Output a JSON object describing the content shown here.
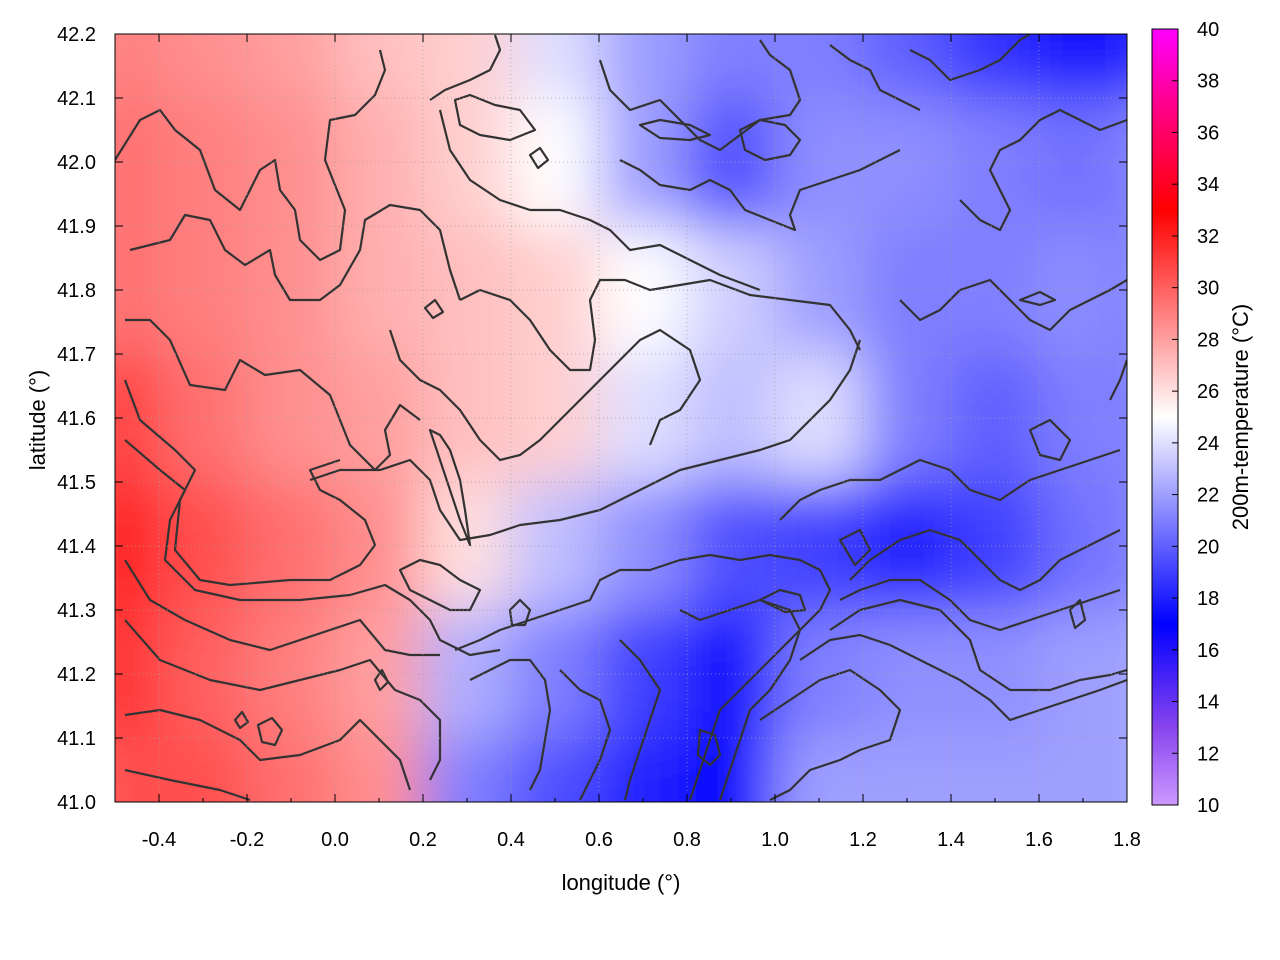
{
  "chart_data": {
    "type": "heatmap",
    "title": "",
    "xlabel": "longitude (°)",
    "ylabel": "latitude (°)",
    "colorbar_label": "200m-temperature (°C)",
    "xlim": [
      -0.5,
      1.8
    ],
    "ylim": [
      41.0,
      42.2
    ],
    "x_ticks": [
      "-0.4",
      "-0.2",
      "0.0",
      "0.2",
      "0.4",
      "0.6",
      "0.8",
      "1.0",
      "1.2",
      "1.4",
      "1.6",
      "1.8"
    ],
    "x_tick_values": [
      -0.4,
      -0.2,
      0.0,
      0.2,
      0.4,
      0.6,
      0.8,
      1.0,
      1.2,
      1.4,
      1.6,
      1.8
    ],
    "y_ticks": [
      "41.0",
      "41.1",
      "41.2",
      "41.3",
      "41.4",
      "41.5",
      "41.6",
      "41.7",
      "41.8",
      "41.9",
      "42.0",
      "42.1",
      "42.2"
    ],
    "y_tick_values": [
      41.0,
      41.1,
      41.2,
      41.3,
      41.4,
      41.5,
      41.6,
      41.7,
      41.8,
      41.9,
      42.0,
      42.1,
      42.2
    ],
    "colorbar_range": [
      10,
      40
    ],
    "colorbar_ticks": [
      "10",
      "12",
      "14",
      "16",
      "18",
      "20",
      "22",
      "24",
      "26",
      "28",
      "30",
      "32",
      "34",
      "36",
      "38",
      "40"
    ],
    "colorbar_tick_values": [
      10,
      12,
      14,
      16,
      18,
      20,
      22,
      24,
      26,
      28,
      30,
      32,
      34,
      36,
      38,
      40
    ],
    "colormap": [
      {
        "value": 10,
        "color": "#cc99ff"
      },
      {
        "value": 13,
        "color": "#8844ee"
      },
      {
        "value": 17,
        "color": "#0000ff"
      },
      {
        "value": 21,
        "color": "#7f7fff"
      },
      {
        "value": 25,
        "color": "#ffffff"
      },
      {
        "value": 29,
        "color": "#ff7f7f"
      },
      {
        "value": 33,
        "color": "#ff0000"
      },
      {
        "value": 37,
        "color": "#ff0088"
      },
      {
        "value": 40,
        "color": "#ff00ff"
      }
    ],
    "grid": true,
    "field_samples": {
      "lon": [
        -0.5,
        -0.3,
        -0.1,
        0.1,
        0.3,
        0.5,
        0.7,
        0.9,
        1.1,
        1.3,
        1.5,
        1.7,
        1.8
      ],
      "lat": [
        42.2,
        42.0,
        41.8,
        41.6,
        41.4,
        41.2,
        41.0
      ],
      "values": [
        [
          29.0,
          28.5,
          28.0,
          27.0,
          26.5,
          24.0,
          22.0,
          21.0,
          21.0,
          20.0,
          18.5,
          17.5,
          18.0
        ],
        [
          29.5,
          29.0,
          28.5,
          27.5,
          26.5,
          25.0,
          22.0,
          19.5,
          21.5,
          21.5,
          21.0,
          20.5,
          21.0
        ],
        [
          29.5,
          29.0,
          28.5,
          27.5,
          27.0,
          26.5,
          25.0,
          23.5,
          22.0,
          21.0,
          21.0,
          21.5,
          21.0
        ],
        [
          31.0,
          29.5,
          28.5,
          28.0,
          27.0,
          26.5,
          24.0,
          23.0,
          24.0,
          21.0,
          20.0,
          21.0,
          21.0
        ],
        [
          32.0,
          30.5,
          29.5,
          28.5,
          26.0,
          23.0,
          21.5,
          19.5,
          19.0,
          18.0,
          19.0,
          20.5,
          21.0
        ],
        [
          31.5,
          30.0,
          29.0,
          28.0,
          22.5,
          21.0,
          19.0,
          17.5,
          21.0,
          21.5,
          21.5,
          22.0,
          22.0
        ],
        [
          30.5,
          30.5,
          29.5,
          28.5,
          21.0,
          19.5,
          18.0,
          17.0,
          22.0,
          22.0,
          22.0,
          22.0,
          22.0
        ]
      ]
    }
  }
}
